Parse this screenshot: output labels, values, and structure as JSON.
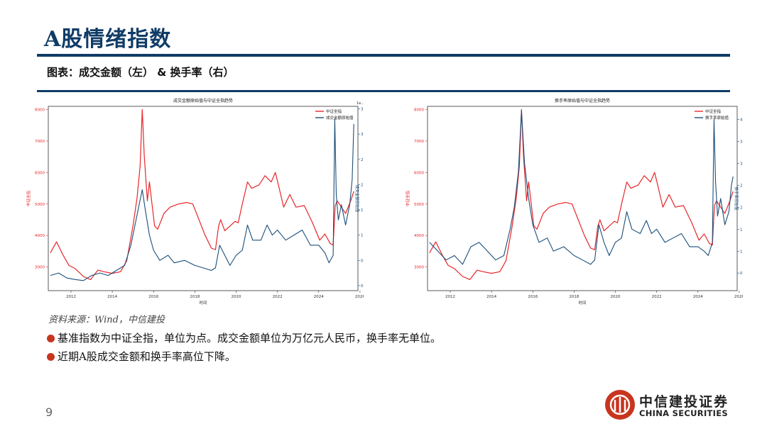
{
  "slide": {
    "title": "A股情绪指数",
    "subtitle": "图表：成交金额（左） & 换手率（右）",
    "source": "资料来源：Wind，中信建投",
    "bullets": [
      "基准指数为中证全指，单位为点。成交金额单位为万亿元人民币，换手率无单位。",
      "近期A股成交金额和换手率高位下降。"
    ],
    "page_number": "9",
    "logo": {
      "cn": "中信建投证券",
      "en": "CHINA SECURITIES"
    }
  },
  "colors": {
    "brand_blue": "#0f3b66",
    "index_red": "#e8262a",
    "series_blue": "#1b4f7a",
    "bullet_red": "#c8351e"
  },
  "chart_data": [
    {
      "type": "line",
      "title": "成交金额原始值与中证全指趋势",
      "xlabel": "时间",
      "ylabel_left": "中证全指",
      "ylabel_right": "成交金额原始值",
      "x_ticks": [
        "2012",
        "2014",
        "2016",
        "2018",
        "2020",
        "2022",
        "2024",
        "2026"
      ],
      "x_range": [
        2010.9,
        2025.9
      ],
      "y_left_ticks": [
        "3000",
        "4000",
        "5000",
        "6000",
        "7000",
        "8000"
      ],
      "y_left_range": [
        2250,
        8100
      ],
      "y_right_ticks": [
        "0.0",
        "0.5",
        "1.0",
        "1.5",
        "2.0",
        "2.5",
        "3.0",
        "3.5"
      ],
      "y_right_range": [
        -0.1,
        3.55
      ],
      "right_axis_unit": "1e...",
      "legend": [
        "中证全指",
        "成交金额原始值"
      ],
      "series": [
        {
          "name": "中证全指",
          "axis": "left",
          "x": [
            2011.0,
            2011.3,
            2011.6,
            2011.9,
            2012.2,
            2012.6,
            2012.95,
            2013.3,
            2013.6,
            2014.0,
            2014.4,
            2014.7,
            2015.0,
            2015.2,
            2015.35,
            2015.45,
            2015.55,
            2015.7,
            2015.8,
            2016.05,
            2016.2,
            2016.5,
            2016.8,
            2017.2,
            2017.6,
            2017.9,
            2018.2,
            2018.5,
            2018.8,
            2019.0,
            2019.15,
            2019.25,
            2019.45,
            2019.7,
            2019.95,
            2020.1,
            2020.3,
            2020.55,
            2020.75,
            2021.1,
            2021.4,
            2021.7,
            2021.9,
            2022.05,
            2022.3,
            2022.6,
            2022.9,
            2023.3,
            2023.7,
            2024.05,
            2024.3,
            2024.55,
            2024.7,
            2024.8,
            2024.9,
            2025.1,
            2025.3,
            2025.55,
            2025.7
          ],
          "y": [
            3450,
            3800,
            3400,
            3050,
            2950,
            2700,
            2600,
            2900,
            2850,
            2800,
            2850,
            3200,
            4300,
            5200,
            6200,
            8000,
            6500,
            5100,
            5700,
            4300,
            4200,
            4700,
            4900,
            5000,
            5050,
            5000,
            4500,
            4000,
            3600,
            3550,
            4300,
            4500,
            4150,
            4300,
            4450,
            4400,
            5000,
            5700,
            5500,
            5600,
            5900,
            5700,
            6000,
            5600,
            4900,
            5300,
            4900,
            4950,
            4400,
            3850,
            4050,
            3750,
            3700,
            4950,
            5100,
            4900,
            4700,
            5100,
            5400
          ]
        },
        {
          "name": "成交金额原始值",
          "axis": "right",
          "x": [
            2011.0,
            2011.4,
            2011.8,
            2012.2,
            2012.6,
            2013.0,
            2013.4,
            2013.8,
            2014.2,
            2014.6,
            2014.9,
            2015.1,
            2015.3,
            2015.45,
            2015.6,
            2015.8,
            2016.0,
            2016.3,
            2016.7,
            2017.0,
            2017.5,
            2018.0,
            2018.4,
            2018.8,
            2019.0,
            2019.2,
            2019.45,
            2019.7,
            2020.0,
            2020.3,
            2020.55,
            2020.8,
            2021.2,
            2021.5,
            2021.75,
            2022.0,
            2022.4,
            2022.8,
            2023.2,
            2023.6,
            2024.0,
            2024.3,
            2024.5,
            2024.7,
            2024.78,
            2024.85,
            2024.95,
            2025.1,
            2025.3,
            2025.5,
            2025.62,
            2025.7
          ],
          "y": [
            0.2,
            0.25,
            0.15,
            0.12,
            0.1,
            0.2,
            0.25,
            0.2,
            0.3,
            0.4,
            0.8,
            1.2,
            1.6,
            1.9,
            1.5,
            1.0,
            0.7,
            0.5,
            0.6,
            0.45,
            0.5,
            0.4,
            0.35,
            0.3,
            0.35,
            0.8,
            0.6,
            0.4,
            0.6,
            0.7,
            1.2,
            0.9,
            0.9,
            1.2,
            1.0,
            1.1,
            0.9,
            1.0,
            1.1,
            0.8,
            0.8,
            0.65,
            0.45,
            0.6,
            3.3,
            1.8,
            1.3,
            1.6,
            1.2,
            1.6,
            2.1,
            3.2
          ]
        }
      ]
    },
    {
      "type": "line",
      "title": "换手率原始值与中证全指趋势",
      "xlabel": "时间",
      "ylabel_left": "中证全指",
      "ylabel_right": "换手率原始值",
      "x_ticks": [
        "2012",
        "2014",
        "2016",
        "2018",
        "2020",
        "2022",
        "2024",
        "2026"
      ],
      "x_range": [
        2010.9,
        2025.9
      ],
      "y_left_ticks": [
        "3000",
        "4000",
        "5000",
        "6000",
        "7000",
        "8000"
      ],
      "y_left_range": [
        2250,
        8100
      ],
      "y_right_ticks": [
        "0.5",
        "1.0",
        "1.5",
        "2.0",
        "2.5",
        "3.0",
        "3.5",
        "4.0"
      ],
      "y_right_range": [
        0.1,
        4.3
      ],
      "legend": [
        "中证全指",
        "换手率原始值"
      ],
      "series": [
        {
          "name": "中证全指",
          "axis": "left",
          "x": [
            2011.0,
            2011.3,
            2011.6,
            2011.9,
            2012.2,
            2012.6,
            2012.95,
            2013.3,
            2013.6,
            2014.0,
            2014.4,
            2014.7,
            2015.0,
            2015.2,
            2015.35,
            2015.45,
            2015.55,
            2015.7,
            2015.8,
            2016.05,
            2016.2,
            2016.5,
            2016.8,
            2017.2,
            2017.6,
            2017.9,
            2018.2,
            2018.5,
            2018.8,
            2019.0,
            2019.15,
            2019.25,
            2019.45,
            2019.7,
            2019.95,
            2020.1,
            2020.3,
            2020.55,
            2020.75,
            2021.1,
            2021.4,
            2021.7,
            2021.9,
            2022.05,
            2022.3,
            2022.6,
            2022.9,
            2023.3,
            2023.7,
            2024.05,
            2024.3,
            2024.55,
            2024.7,
            2024.8,
            2024.9,
            2025.1,
            2025.3,
            2025.55,
            2025.7
          ],
          "y": [
            3450,
            3800,
            3400,
            3050,
            2950,
            2700,
            2600,
            2900,
            2850,
            2800,
            2850,
            3200,
            4300,
            5200,
            6200,
            8000,
            6500,
            5100,
            5700,
            4300,
            4200,
            4700,
            4900,
            5000,
            5050,
            5000,
            4500,
            4000,
            3600,
            3550,
            4300,
            4500,
            4150,
            4300,
            4450,
            4400,
            5000,
            5700,
            5500,
            5600,
            5900,
            5700,
            6000,
            5600,
            4900,
            5300,
            4900,
            4950,
            4400,
            3850,
            4050,
            3750,
            3700,
            4950,
            5100,
            4900,
            4700,
            5100,
            5400
          ]
        },
        {
          "name": "换手率原始值",
          "axis": "right",
          "x": [
            2011.0,
            2011.4,
            2011.8,
            2012.2,
            2012.6,
            2013.0,
            2013.4,
            2013.8,
            2014.2,
            2014.6,
            2014.9,
            2015.1,
            2015.3,
            2015.45,
            2015.6,
            2015.8,
            2016.0,
            2016.3,
            2016.7,
            2017.0,
            2017.5,
            2018.0,
            2018.4,
            2018.8,
            2019.0,
            2019.2,
            2019.45,
            2019.7,
            2020.0,
            2020.3,
            2020.55,
            2020.8,
            2021.2,
            2021.5,
            2021.75,
            2022.0,
            2022.4,
            2022.8,
            2023.2,
            2023.6,
            2024.0,
            2024.3,
            2024.5,
            2024.7,
            2024.78,
            2024.85,
            2024.95,
            2025.1,
            2025.3,
            2025.5,
            2025.62,
            2025.7
          ],
          "y": [
            1.2,
            1.0,
            0.8,
            0.9,
            0.7,
            1.1,
            1.2,
            1.0,
            0.8,
            0.9,
            1.5,
            2.0,
            2.8,
            4.2,
            3.0,
            2.2,
            1.6,
            1.2,
            1.3,
            1.0,
            1.1,
            0.9,
            0.8,
            0.7,
            0.8,
            1.6,
            1.2,
            0.9,
            1.2,
            1.3,
            1.9,
            1.5,
            1.4,
            1.7,
            1.4,
            1.5,
            1.2,
            1.3,
            1.4,
            1.1,
            1.1,
            1.0,
            0.9,
            1.2,
            4.0,
            2.6,
            1.8,
            2.2,
            1.6,
            1.9,
            2.5,
            2.7
          ]
        }
      ]
    }
  ]
}
